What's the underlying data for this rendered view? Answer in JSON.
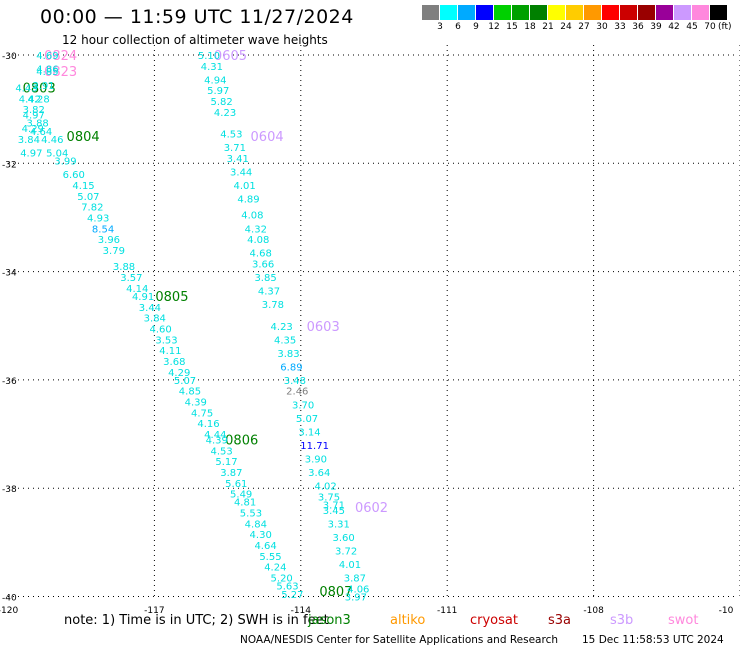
{
  "title": "00:00 — 11:59 UTC 11/27/2024",
  "subtitle": "12 hour collection of altimeter wave heights",
  "legend": {
    "labels": [
      "3",
      "6",
      "9",
      "12",
      "15",
      "18",
      "21",
      "24",
      "27",
      "30",
      "33",
      "36",
      "39",
      "42",
      "45",
      "70"
    ],
    "unit": "(ft)",
    "colors": [
      "#7f7f7f",
      "#00ffff",
      "#00aaff",
      "#0000ff",
      "#00d000",
      "#00a000",
      "#008000",
      "#ffff00",
      "#ffcc00",
      "#ff9900",
      "#ff0000",
      "#cc0000",
      "#990000",
      "#990099",
      "#cc99ff",
      "#ff88dd",
      "#000000"
    ]
  },
  "axes": {
    "lat_labels": [
      "-30",
      "-32",
      "-34",
      "-36",
      "-38",
      "-40"
    ],
    "lon_labels": [
      "-120",
      "-117",
      "-114",
      "-111",
      "-108",
      "-10"
    ]
  },
  "tracks": [
    {
      "time": "0824",
      "color": "#ff88dd",
      "lon": -119.26,
      "lat": -30.0
    },
    {
      "time": "0823",
      "color": "#ff88dd",
      "lon": -119.26,
      "lat": -30.3
    },
    {
      "time": "0803",
      "color": "#008000",
      "lon": -119.7,
      "lat": -30.6
    },
    {
      "time": "0804",
      "color": "#008000",
      "lon": -118.8,
      "lat": -31.5
    },
    {
      "time": "0805",
      "color": "#008000",
      "lon": -116.98,
      "lat": -34.45
    },
    {
      "time": "0806",
      "color": "#008000",
      "lon": -115.55,
      "lat": -37.1
    },
    {
      "time": "0807",
      "color": "#008000",
      "lon": -113.62,
      "lat": -39.9
    },
    {
      "time": "0605",
      "color": "#cc99ff",
      "lon": -115.78,
      "lat": -30.0
    },
    {
      "time": "0604",
      "color": "#cc99ff",
      "lon": -115.03,
      "lat": -31.5
    },
    {
      "time": "0603",
      "color": "#cc99ff",
      "lon": -113.88,
      "lat": -35.0
    },
    {
      "time": "0602",
      "color": "#cc99ff",
      "lon": -112.89,
      "lat": -38.35
    }
  ],
  "wave_heights": [
    {
      "value": "4.69",
      "color": "#00e0e0",
      "lon": -119.42,
      "lat": -30.0
    },
    {
      "value": "4.86",
      "color": "#00e0e0",
      "lon": -119.42,
      "lat": -30.25
    },
    {
      "value": "4.85",
      "color": "#00e0e0",
      "lon": -119.42,
      "lat": -30.3
    },
    {
      "value": "4.43",
      "color": "#00e0e0",
      "lon": -119.85,
      "lat": -30.6
    },
    {
      "value": "3.91",
      "color": "#00e0e0",
      "lon": -119.5,
      "lat": -30.55
    },
    {
      "value": "4.28",
      "color": "#00e0e0",
      "lon": -119.6,
      "lat": -30.8
    },
    {
      "value": "4.42",
      "color": "#00e0e0",
      "lon": -119.78,
      "lat": -30.8
    },
    {
      "value": "3.82",
      "color": "#00e0e0",
      "lon": -119.7,
      "lat": -31.0
    },
    {
      "value": "4.97",
      "color": "#00e0e0",
      "lon": -119.7,
      "lat": -31.1
    },
    {
      "value": "3.88",
      "color": "#00e0e0",
      "lon": -119.62,
      "lat": -31.25
    },
    {
      "value": "4.29",
      "color": "#00e0e0",
      "lon": -119.72,
      "lat": -31.35
    },
    {
      "value": "4.64",
      "color": "#00e0e0",
      "lon": -119.55,
      "lat": -31.4
    },
    {
      "value": "3.84",
      "color": "#00e0e0",
      "lon": -119.8,
      "lat": -31.55
    },
    {
      "value": "4.46",
      "color": "#00e0e0",
      "lon": -119.32,
      "lat": -31.55
    },
    {
      "value": "4.97",
      "color": "#00e0e0",
      "lon": -119.75,
      "lat": -31.8
    },
    {
      "value": "5.04",
      "color": "#00e0e0",
      "lon": -119.22,
      "lat": -31.8
    },
    {
      "value": "3.99",
      "color": "#00e0e0",
      "lon": -119.05,
      "lat": -31.95
    },
    {
      "value": "6.60",
      "color": "#00e0e0",
      "lon": -118.88,
      "lat": -32.2
    },
    {
      "value": "4.15",
      "color": "#00e0e0",
      "lon": -118.68,
      "lat": -32.4
    },
    {
      "value": "5.07",
      "color": "#00e0e0",
      "lon": -118.58,
      "lat": -32.6
    },
    {
      "value": "7.82",
      "color": "#00e0e0",
      "lon": -118.5,
      "lat": -32.8
    },
    {
      "value": "4.93",
      "color": "#00e0e0",
      "lon": -118.38,
      "lat": -33.0
    },
    {
      "value": "8.54",
      "color": "#00aaff",
      "lon": -118.28,
      "lat": -33.2
    },
    {
      "value": "3.96",
      "color": "#00e0e0",
      "lon": -118.16,
      "lat": -33.4
    },
    {
      "value": "3.79",
      "color": "#00e0e0",
      "lon": -118.06,
      "lat": -33.6
    },
    {
      "value": "3.88",
      "color": "#00e0e0",
      "lon": -117.85,
      "lat": -33.9
    },
    {
      "value": "3.57",
      "color": "#00e0e0",
      "lon": -117.7,
      "lat": -34.1
    },
    {
      "value": "4.14",
      "color": "#00e0e0",
      "lon": -117.58,
      "lat": -34.3
    },
    {
      "value": "4.91",
      "color": "#00e0e0",
      "lon": -117.46,
      "lat": -34.45
    },
    {
      "value": "3.44",
      "color": "#00e0e0",
      "lon": -117.32,
      "lat": -34.65
    },
    {
      "value": "3.84",
      "color": "#00e0e0",
      "lon": -117.22,
      "lat": -34.85
    },
    {
      "value": "4.60",
      "color": "#00e0e0",
      "lon": -117.1,
      "lat": -35.05
    },
    {
      "value": "3.53",
      "color": "#00e0e0",
      "lon": -116.98,
      "lat": -35.25
    },
    {
      "value": "4.11",
      "color": "#00e0e0",
      "lon": -116.9,
      "lat": -35.45
    },
    {
      "value": "3.68",
      "color": "#00e0e0",
      "lon": -116.82,
      "lat": -35.65
    },
    {
      "value": "4.29",
      "color": "#00e0e0",
      "lon": -116.72,
      "lat": -35.85
    },
    {
      "value": "5.07",
      "color": "#00e0e0",
      "lon": -116.6,
      "lat": -36.0
    },
    {
      "value": "4.85",
      "color": "#00e0e0",
      "lon": -116.5,
      "lat": -36.2
    },
    {
      "value": "4.39",
      "color": "#00e0e0",
      "lon": -116.38,
      "lat": -36.4
    },
    {
      "value": "4.75",
      "color": "#00e0e0",
      "lon": -116.25,
      "lat": -36.6
    },
    {
      "value": "4.16",
      "color": "#00e0e0",
      "lon": -116.12,
      "lat": -36.8
    },
    {
      "value": "4.44",
      "color": "#00e0e0",
      "lon": -115.98,
      "lat": -37.0
    },
    {
      "value": "4.39",
      "color": "#00e0e0",
      "lon": -115.95,
      "lat": -37.1
    },
    {
      "value": "4.53",
      "color": "#00e0e0",
      "lon": -115.85,
      "lat": -37.3
    },
    {
      "value": "5.17",
      "color": "#00e0e0",
      "lon": -115.75,
      "lat": -37.5
    },
    {
      "value": "3.87",
      "color": "#00e0e0",
      "lon": -115.65,
      "lat": -37.7
    },
    {
      "value": "5.61",
      "color": "#00e0e0",
      "lon": -115.55,
      "lat": -37.9
    },
    {
      "value": "5.49",
      "color": "#00e0e0",
      "lon": -115.45,
      "lat": -38.1
    },
    {
      "value": "4.81",
      "color": "#00e0e0",
      "lon": -115.37,
      "lat": -38.25
    },
    {
      "value": "5.53",
      "color": "#00e0e0",
      "lon": -115.25,
      "lat": -38.45
    },
    {
      "value": "4.84",
      "color": "#00e0e0",
      "lon": -115.15,
      "lat": -38.65
    },
    {
      "value": "4.30",
      "color": "#00e0e0",
      "lon": -115.05,
      "lat": -38.85
    },
    {
      "value": "4.64",
      "color": "#00e0e0",
      "lon": -114.95,
      "lat": -39.05
    },
    {
      "value": "5.55",
      "color": "#00e0e0",
      "lon": -114.85,
      "lat": -39.25
    },
    {
      "value": "4.24",
      "color": "#00e0e0",
      "lon": -114.75,
      "lat": -39.45
    },
    {
      "value": "5.20",
      "color": "#00e0e0",
      "lon": -114.62,
      "lat": -39.65
    },
    {
      "value": "5.63",
      "color": "#00e0e0",
      "lon": -114.5,
      "lat": -39.8
    },
    {
      "value": "5.27",
      "color": "#00e0e0",
      "lon": -114.4,
      "lat": -39.95
    },
    {
      "value": "5.10",
      "color": "#00e0e0",
      "lon": -116.11,
      "lat": -30.0
    },
    {
      "value": "4.31",
      "color": "#00e0e0",
      "lon": -116.05,
      "lat": -30.2
    },
    {
      "value": "4.94",
      "color": "#00e0e0",
      "lon": -115.98,
      "lat": -30.45
    },
    {
      "value": "5.97",
      "color": "#00e0e0",
      "lon": -115.92,
      "lat": -30.65
    },
    {
      "value": "5.82",
      "color": "#00e0e0",
      "lon": -115.85,
      "lat": -30.85
    },
    {
      "value": "4.23",
      "color": "#00e0e0",
      "lon": -115.78,
      "lat": -31.05
    },
    {
      "value": "4.53",
      "color": "#00e0e0",
      "lon": -115.65,
      "lat": -31.45
    },
    {
      "value": "3.71",
      "color": "#00e0e0",
      "lon": -115.58,
      "lat": -31.7
    },
    {
      "value": "3.41",
      "color": "#00e0e0",
      "lon": -115.52,
      "lat": -31.9
    },
    {
      "value": "3.44",
      "color": "#00e0e0",
      "lon": -115.45,
      "lat": -32.15
    },
    {
      "value": "4.01",
      "color": "#00e0e0",
      "lon": -115.38,
      "lat": -32.4
    },
    {
      "value": "4.89",
      "color": "#00e0e0",
      "lon": -115.3,
      "lat": -32.65
    },
    {
      "value": "4.08",
      "color": "#00e0e0",
      "lon": -115.22,
      "lat": -32.95
    },
    {
      "value": "4.32",
      "color": "#00e0e0",
      "lon": -115.15,
      "lat": -33.2
    },
    {
      "value": "4.08",
      "color": "#00e0e0",
      "lon": -115.1,
      "lat": -33.4
    },
    {
      "value": "4.68",
      "color": "#00e0e0",
      "lon": -115.05,
      "lat": -33.65
    },
    {
      "value": "3.66",
      "color": "#00e0e0",
      "lon": -115.0,
      "lat": -33.85
    },
    {
      "value": "3.85",
      "color": "#00e0e0",
      "lon": -114.95,
      "lat": -34.1
    },
    {
      "value": "4.37",
      "color": "#00e0e0",
      "lon": -114.88,
      "lat": -34.35
    },
    {
      "value": "3.78",
      "color": "#00e0e0",
      "lon": -114.8,
      "lat": -34.6
    },
    {
      "value": "4.23",
      "color": "#00e0e0",
      "lon": -114.62,
      "lat": -35.0
    },
    {
      "value": "4.35",
      "color": "#00e0e0",
      "lon": -114.55,
      "lat": -35.25
    },
    {
      "value": "3.83",
      "color": "#00e0e0",
      "lon": -114.48,
      "lat": -35.5
    },
    {
      "value": "6.89",
      "color": "#00aaff",
      "lon": -114.42,
      "lat": -35.75
    },
    {
      "value": "3.48",
      "color": "#00e0e0",
      "lon": -114.35,
      "lat": -36.0
    },
    {
      "value": "2.46",
      "color": "#7f7f7f",
      "lon": -114.3,
      "lat": -36.2
    },
    {
      "value": "3.70",
      "color": "#00e0e0",
      "lon": -114.18,
      "lat": -36.45
    },
    {
      "value": "5.07",
      "color": "#00e0e0",
      "lon": -114.1,
      "lat": -36.7
    },
    {
      "value": "3.14",
      "color": "#00e0e0",
      "lon": -114.05,
      "lat": -36.95
    },
    {
      "value": "11.71",
      "color": "#0000ff",
      "lon": -114.01,
      "lat": -37.2
    },
    {
      "value": "3.90",
      "color": "#00e0e0",
      "lon": -113.92,
      "lat": -37.45
    },
    {
      "value": "3.64",
      "color": "#00e0e0",
      "lon": -113.85,
      "lat": -37.7
    },
    {
      "value": "4.02",
      "color": "#00e0e0",
      "lon": -113.72,
      "lat": -37.95
    },
    {
      "value": "3.75",
      "color": "#00e0e0",
      "lon": -113.65,
      "lat": -38.15
    },
    {
      "value": "3.71",
      "color": "#00e0e0",
      "lon": -113.55,
      "lat": -38.3
    },
    {
      "value": "3.45",
      "color": "#00e0e0",
      "lon": -113.55,
      "lat": -38.4
    },
    {
      "value": "3.31",
      "color": "#00e0e0",
      "lon": -113.45,
      "lat": -38.65
    },
    {
      "value": "3.60",
      "color": "#00e0e0",
      "lon": -113.35,
      "lat": -38.9
    },
    {
      "value": "3.72",
      "color": "#00e0e0",
      "lon": -113.3,
      "lat": -39.15
    },
    {
      "value": "4.01",
      "color": "#00e0e0",
      "lon": -113.22,
      "lat": -39.4
    },
    {
      "value": "3.87",
      "color": "#00e0e0",
      "lon": -113.12,
      "lat": -39.65
    },
    {
      "value": "4.06",
      "color": "#00e0e0",
      "lon": -113.05,
      "lat": -39.85
    },
    {
      "value": "3.97",
      "color": "#00e0e0",
      "lon": -113.1,
      "lat": -40.0
    }
  ],
  "note": "note:  1) Time is in UTC; 2) SWH is in feet",
  "satellites": [
    {
      "name": "jason3",
      "color": "#008000"
    },
    {
      "name": "altiko",
      "color": "#ff9900"
    },
    {
      "name": "cryosat",
      "color": "#cc0000"
    },
    {
      "name": "s3a",
      "color": "#990000"
    },
    {
      "name": "s3b",
      "color": "#cc99ff"
    },
    {
      "name": "swot",
      "color": "#ff88dd"
    }
  ],
  "footer": "NOAA/NESDIS Center for Satellite Applications and Research",
  "timestamp": "15 Dec 11:58:53 UTC 2024"
}
